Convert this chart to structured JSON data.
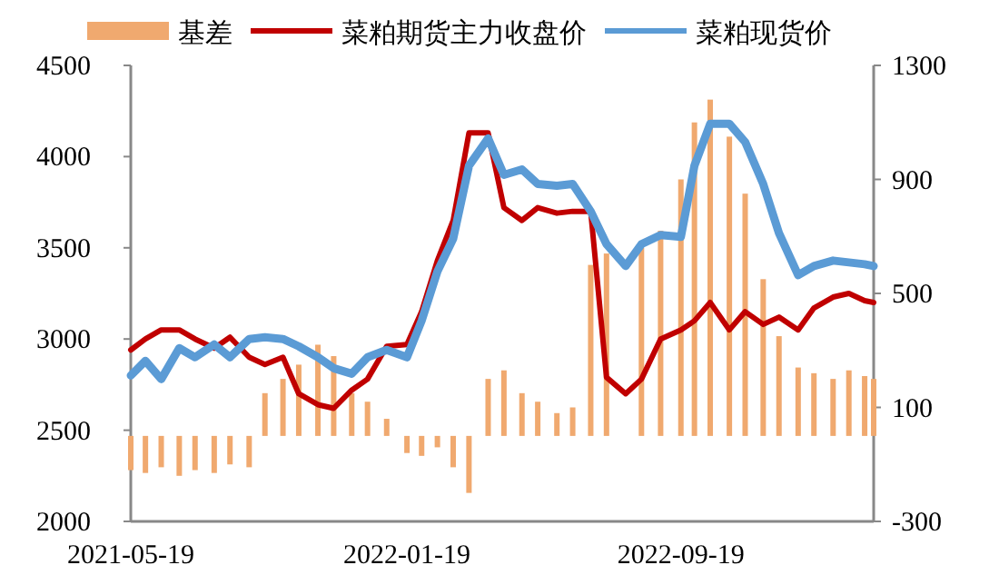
{
  "chart_data": {
    "type": "line",
    "legend": "top",
    "x": [
      "2021-05-19",
      "2021-06-01",
      "2021-06-15",
      "2021-07-01",
      "2021-07-15",
      "2021-08-01",
      "2021-08-15",
      "2021-09-01",
      "2021-09-15",
      "2021-10-01",
      "2021-10-15",
      "2021-11-01",
      "2021-11-15",
      "2021-12-01",
      "2021-12-15",
      "2022-01-01",
      "2022-01-19",
      "2022-02-01",
      "2022-02-15",
      "2022-03-01",
      "2022-03-15",
      "2022-04-01",
      "2022-04-15",
      "2022-05-01",
      "2022-05-15",
      "2022-06-01",
      "2022-06-15",
      "2022-07-01",
      "2022-07-15",
      "2022-08-01",
      "2022-08-15",
      "2022-09-01",
      "2022-09-19",
      "2022-10-01",
      "2022-10-15",
      "2022-11-01",
      "2022-11-15",
      "2022-12-01",
      "2022-12-15",
      "2023-01-01",
      "2023-01-15",
      "2023-02-01",
      "2023-02-15",
      "2023-03-01",
      "2023-03-09"
    ],
    "xlim": [
      "2021-05-19",
      "2023-03-09"
    ],
    "xticks": [
      "2021-05-19",
      "2022-01-19",
      "2022-09-19"
    ],
    "ylim": [
      2000,
      4500
    ],
    "yticks": [
      2000,
      2500,
      3000,
      3500,
      4000,
      4500
    ],
    "y2lim": [
      -300,
      1300
    ],
    "y2ticks": [
      -300,
      100,
      500,
      900,
      1300
    ],
    "series": [
      {
        "name": "基差",
        "type": "bar",
        "axis": "y2",
        "color": "#f0a96f",
        "values": [
          -120,
          -130,
          -110,
          -140,
          -120,
          -130,
          -100,
          -110,
          150,
          200,
          250,
          320,
          280,
          150,
          120,
          60,
          -60,
          -70,
          -40,
          -110,
          -200,
          200,
          230,
          150,
          120,
          80,
          100,
          600,
          640,
          null,
          660,
          720,
          900,
          1100,
          1180,
          1050,
          850,
          550,
          350,
          240,
          220,
          200,
          230,
          210,
          200
        ]
      },
      {
        "name": "菜粕期货主力收盘价",
        "color": "#c00000",
        "values": [
          2940,
          3000,
          3050,
          3050,
          3000,
          2950,
          3010,
          2900,
          2860,
          2900,
          2700,
          2640,
          2620,
          2720,
          2780,
          2960,
          2970,
          3150,
          3430,
          3650,
          4130,
          4130,
          3720,
          3650,
          3720,
          3690,
          3700,
          3700,
          2790,
          2700,
          2780,
          3000,
          3050,
          3100,
          3200,
          3050,
          3150,
          3080,
          3120,
          3050,
          3170,
          3230,
          3250,
          3210,
          3200
        ]
      },
      {
        "name": "菜粕现货价",
        "color": "#5b9bd5",
        "values": [
          2800,
          2880,
          2780,
          2950,
          2900,
          2970,
          2900,
          3000,
          3010,
          3000,
          2960,
          2900,
          2840,
          2810,
          2900,
          2940,
          2900,
          3100,
          3370,
          3550,
          3950,
          4100,
          3900,
          3930,
          3850,
          3840,
          3850,
          3700,
          3520,
          3400,
          3520,
          3570,
          3560,
          3950,
          4180,
          4180,
          4080,
          3850,
          3580,
          3350,
          3400,
          3430,
          3420,
          3410,
          3400
        ]
      }
    ]
  }
}
